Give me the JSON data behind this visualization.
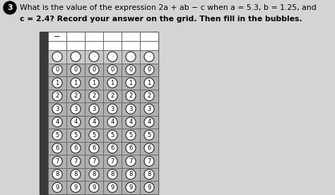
{
  "title_circle_num": "3",
  "question_line1": "What is the value of the expression 2a + ab − c when a = 5.3, b = 1.25, and",
  "question_line2": "c = 2.4? Record your answer on the grid. Then fill in the bubbles.",
  "num_cols": 6,
  "digits": [
    "·",
    "0",
    "1",
    "2",
    "3",
    "4",
    "5",
    "6",
    "7",
    "8",
    "9"
  ],
  "bg_color": "#d4d4d4",
  "header_bg": "#ffffff",
  "cell_bg": "#b0b0b0",
  "bubble_fill": "#ffffff",
  "bubble_outline": "#222222",
  "grid_line_color": "#555555",
  "left_bar_color": "#3a3a3a",
  "minus_symbol": "−",
  "dot_row_bg": "#c8c8c8"
}
